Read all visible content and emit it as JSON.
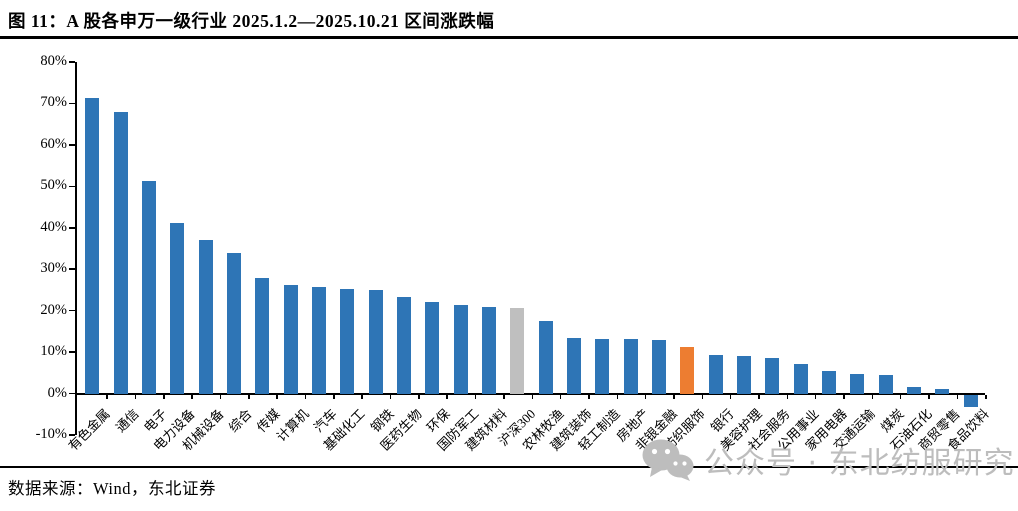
{
  "figure": {
    "title": "图 11：A 股各申万一级行业 2025.1.2—2025.10.21 区间涨跌幅",
    "source": "数据来源：Wind，东北证券",
    "watermark": "公众号 · 东北纺服研究"
  },
  "chart_data": {
    "type": "bar",
    "title": "A股各申万一级行业 2025.1.2—2025.10.21 区间涨跌幅",
    "categories": [
      "有色金属",
      "通信",
      "电子",
      "电力设备",
      "机械设备",
      "综合",
      "传媒",
      "计算机",
      "汽车",
      "基础化工",
      "钢铁",
      "医药生物",
      "环保",
      "国防军工",
      "建筑材料",
      "沪深300",
      "农林牧渔",
      "建筑装饰",
      "轻工制造",
      "房地产",
      "非银金融",
      "纺织服饰",
      "银行",
      "美容护理",
      "社会服务",
      "公用事业",
      "家用电器",
      "交通运输",
      "煤炭",
      "石油石化",
      "商贸零售",
      "食品饮料"
    ],
    "values": [
      71.3,
      68.0,
      51.3,
      41.2,
      37.0,
      33.8,
      28.0,
      26.3,
      25.8,
      25.2,
      25.0,
      23.3,
      22.0,
      21.4,
      21.0,
      20.7,
      17.6,
      13.4,
      13.2,
      13.1,
      12.9,
      11.2,
      9.3,
      9.0,
      8.6,
      7.2,
      5.5,
      4.6,
      4.5,
      1.7,
      1.0,
      -3.0
    ],
    "xlabel": "",
    "ylabel": "",
    "ylim": [
      -10,
      80
    ],
    "yticks": [
      80,
      70,
      60,
      50,
      40,
      30,
      20,
      10,
      0,
      -10
    ],
    "ytick_labels": [
      "80%",
      "70%",
      "60%",
      "50%",
      "40%",
      "30%",
      "20%",
      "10%",
      "0%",
      "-10%"
    ],
    "grid": false,
    "legend": null,
    "bar_color": "#2E75B6",
    "highlight_colors": {
      "沪深300": "#BFBFBF",
      "纺织服饰": "#ED7D31"
    }
  }
}
